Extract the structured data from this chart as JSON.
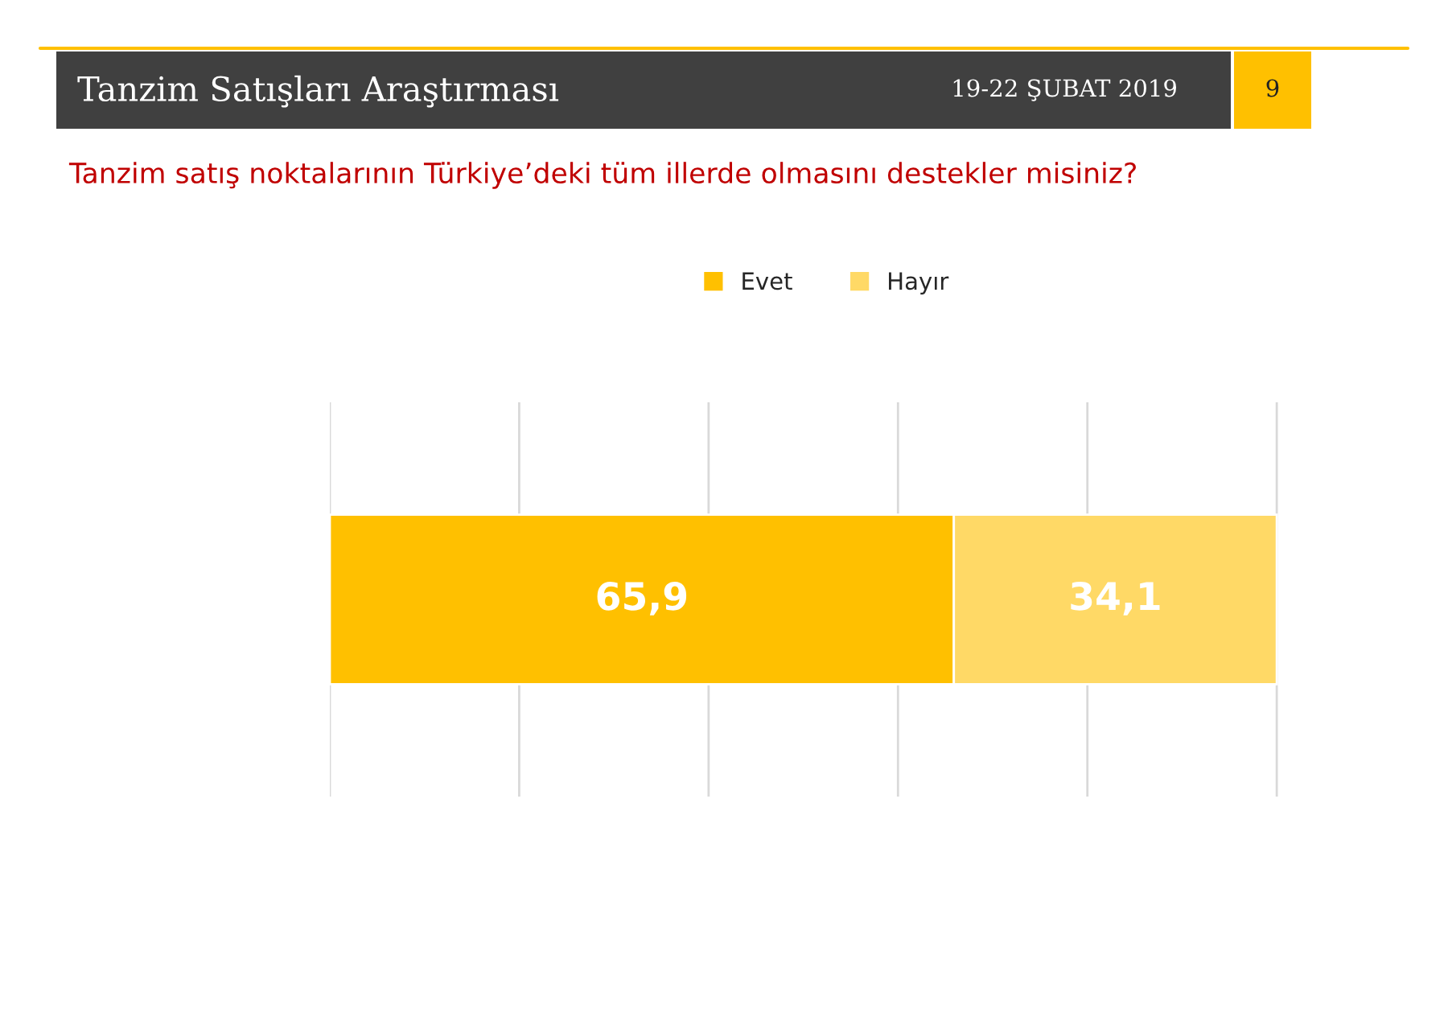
{
  "chart_data": {
    "type": "bar",
    "title": "Tanzim Satışları Araştırması",
    "subtitle": "Tanzim satış noktalarının Türkiye’deki tüm illerde olmasını destekler misiniz?",
    "annotations": [
      "19-22 ŞUBAT 2019",
      "9"
    ],
    "categories": [
      null
    ],
    "series": [
      {
        "name": "Evet",
        "color": "#ffc000",
        "values": [
          65.9
        ],
        "value_labels": [
          "65,9"
        ]
      },
      {
        "name": "Hayır",
        "color": "#ffd966",
        "values": [
          34.1
        ],
        "value_labels": [
          "34,1"
        ]
      }
    ],
    "stacked": true,
    "orientation": "horizontal",
    "grid": "x",
    "legend": "top"
  }
}
